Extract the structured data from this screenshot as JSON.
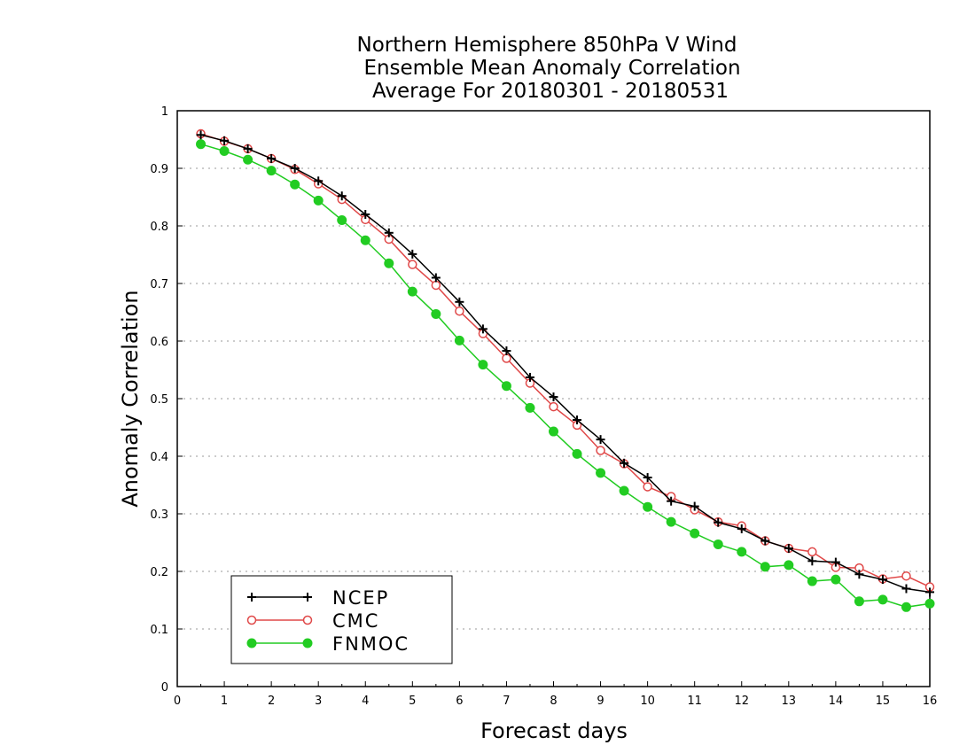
{
  "chart_data": {
    "type": "line",
    "title_lines": [
      "Northern Hemisphere 850hPa V Wind",
      "Ensemble Mean Anomaly Correlation",
      "Average For 20180301 - 20180531"
    ],
    "xlabel": "Forecast days",
    "ylabel": "Anomaly Correlation",
    "xlim": [
      0,
      16
    ],
    "ylim": [
      0,
      1
    ],
    "x_ticks": [
      "0",
      "1",
      "2",
      "3",
      "4",
      "5",
      "6",
      "7",
      "8",
      "9",
      "10",
      "11",
      "12",
      "13",
      "14",
      "15",
      "16"
    ],
    "y_ticks": [
      "0",
      "0.1",
      "0.2",
      "0.3",
      "0.4",
      "0.5",
      "0.6",
      "0.7",
      "0.8",
      "0.9",
      "1"
    ],
    "grid": "horizontal dotted",
    "legend_position": "bottom-left",
    "x": [
      0.5,
      1,
      1.5,
      2,
      2.5,
      3,
      3.5,
      4,
      4.5,
      5,
      5.5,
      6,
      6.5,
      7,
      7.5,
      8,
      8.5,
      9,
      9.5,
      10,
      10.5,
      11,
      11.5,
      12,
      12.5,
      13,
      13.5,
      14,
      14.5,
      15,
      15.5,
      16
    ],
    "series": [
      {
        "name": "NCEP",
        "color": "#000000",
        "marker": "plus",
        "values": [
          0.958,
          0.948,
          0.934,
          0.917,
          0.9,
          0.878,
          0.852,
          0.82,
          0.788,
          0.751,
          0.71,
          0.668,
          0.621,
          0.583,
          0.537,
          0.503,
          0.463,
          0.429,
          0.388,
          0.363,
          0.322,
          0.313,
          0.285,
          0.274,
          0.253,
          0.24,
          0.218,
          0.216,
          0.195,
          0.186,
          0.17,
          0.164
        ]
      },
      {
        "name": "CMC",
        "color": "#e04848",
        "marker": "open-circle",
        "values": [
          0.96,
          0.947,
          0.934,
          0.917,
          0.898,
          0.873,
          0.846,
          0.811,
          0.777,
          0.733,
          0.697,
          0.652,
          0.613,
          0.57,
          0.527,
          0.486,
          0.454,
          0.41,
          0.387,
          0.347,
          0.33,
          0.307,
          0.286,
          0.279,
          0.253,
          0.24,
          0.234,
          0.207,
          0.206,
          0.187,
          0.192,
          0.173
        ]
      },
      {
        "name": "FNMOC",
        "color": "#22cc22",
        "marker": "filled-circle",
        "values": [
          0.942,
          0.93,
          0.915,
          0.896,
          0.872,
          0.844,
          0.81,
          0.775,
          0.735,
          0.686,
          0.647,
          0.601,
          0.559,
          0.522,
          0.484,
          0.443,
          0.404,
          0.371,
          0.34,
          0.312,
          0.286,
          0.266,
          0.247,
          0.234,
          0.208,
          0.211,
          0.183,
          0.186,
          0.148,
          0.151,
          0.138,
          0.144
        ]
      }
    ]
  }
}
